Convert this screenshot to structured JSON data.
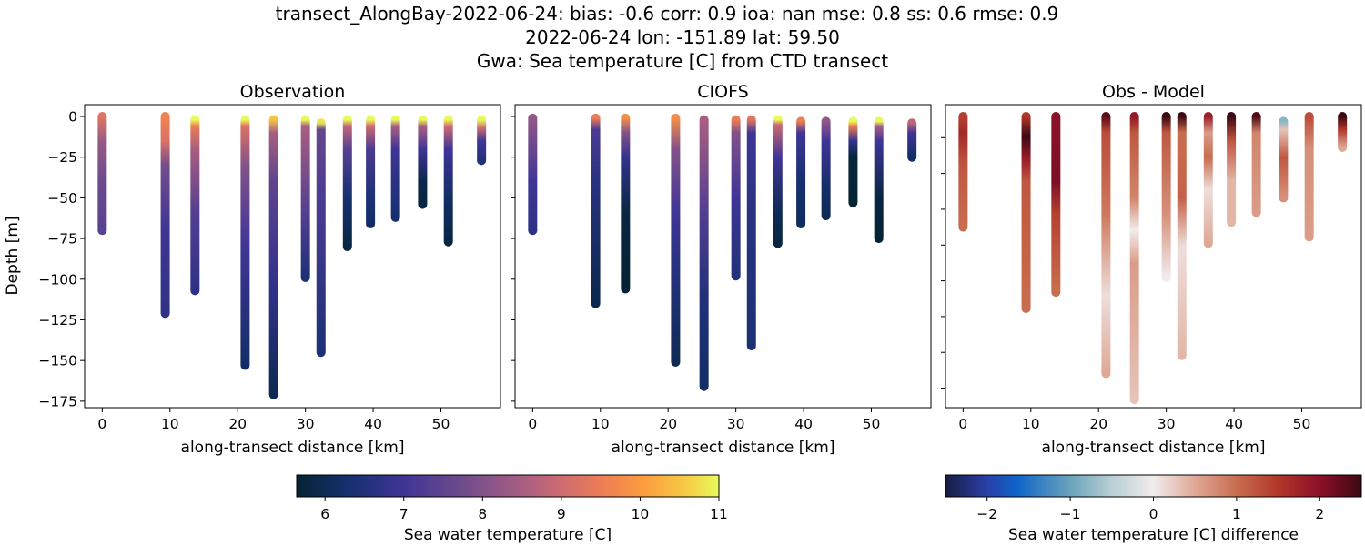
{
  "chart_data": {
    "type": "scatter",
    "title_lines": [
      "transect_AlongBay-2022-06-24: bias: -0.6  corr: 0.9  ioa: nan  mse: 0.8  ss: 0.6  rmse: 0.9",
      "2022-06-24 lon: -151.89 lat: 59.50",
      "Gwa: Sea temperature [C] from CTD transect"
    ],
    "ylabel": "Depth [m]",
    "xlim": [
      -2.6,
      58.8
    ],
    "ylim": [
      -179,
      7.3
    ],
    "xticks": [
      0,
      10,
      20,
      30,
      40,
      50
    ],
    "yticks": [
      0,
      -25,
      -50,
      -75,
      -100,
      -125,
      -150,
      -175
    ],
    "grid": false,
    "panels": [
      {
        "title": "Observation",
        "xlabel": "along-transect distance [km]",
        "colormap": "thermal",
        "casts": [
          {
            "x": 0,
            "profile": [
              [
                0,
                9.3
              ],
              [
                -15,
                8.3
              ],
              [
                -40,
                7.7
              ],
              [
                -70,
                7.4
              ]
            ]
          },
          {
            "x": 9.3,
            "profile": [
              [
                0,
                9.6
              ],
              [
                -15,
                9.2
              ],
              [
                -30,
                7.8
              ],
              [
                -70,
                7.0
              ],
              [
                -121,
                6.7
              ]
            ]
          },
          {
            "x": 13.7,
            "profile": [
              [
                -2,
                11
              ],
              [
                -6,
                9.5
              ],
              [
                -20,
                8.5
              ],
              [
                -60,
                7.3
              ],
              [
                -107,
                6.7
              ]
            ]
          },
          {
            "x": 21.1,
            "profile": [
              [
                -2,
                11
              ],
              [
                -6,
                9.2
              ],
              [
                -30,
                8.0
              ],
              [
                -80,
                7.0
              ],
              [
                -153,
                6.2
              ]
            ]
          },
          {
            "x": 25.3,
            "profile": [
              [
                -2,
                10.5
              ],
              [
                -10,
                8.5
              ],
              [
                -40,
                7.5
              ],
              [
                -100,
                6.8
              ],
              [
                -171,
                6.0
              ]
            ]
          },
          {
            "x": 30.0,
            "profile": [
              [
                -2,
                11
              ],
              [
                -6,
                8.5
              ],
              [
                -60,
                7.3
              ],
              [
                -99,
                6.4
              ]
            ]
          },
          {
            "x": 32.3,
            "profile": [
              [
                -4,
                10.8
              ],
              [
                -8,
                7.6
              ],
              [
                -50,
                7.2
              ],
              [
                -145,
                6.4
              ]
            ]
          },
          {
            "x": 36.2,
            "profile": [
              [
                -2,
                11
              ],
              [
                -6,
                8.8
              ],
              [
                -20,
                7.4
              ],
              [
                -50,
                6.3
              ],
              [
                -80,
                5.8
              ]
            ]
          },
          {
            "x": 39.6,
            "profile": [
              [
                -2,
                11
              ],
              [
                -6,
                9.0
              ],
              [
                -20,
                7.2
              ],
              [
                -50,
                6.4
              ],
              [
                -66,
                6.2
              ]
            ]
          },
          {
            "x": 43.3,
            "profile": [
              [
                -2,
                11
              ],
              [
                -6,
                8.5
              ],
              [
                -20,
                7.0
              ],
              [
                -62,
                6.3
              ]
            ]
          },
          {
            "x": 47.3,
            "profile": [
              [
                -2,
                11
              ],
              [
                -6,
                8.5
              ],
              [
                -20,
                7.0
              ],
              [
                -40,
                5.9
              ],
              [
                -54,
                5.8
              ]
            ]
          },
          {
            "x": 51.1,
            "profile": [
              [
                -2,
                11
              ],
              [
                -6,
                9.0
              ],
              [
                -20,
                7.0
              ],
              [
                -50,
                6.2
              ],
              [
                -77,
                5.8
              ]
            ]
          },
          {
            "x": 56.0,
            "profile": [
              [
                -2,
                11
              ],
              [
                -7,
                9.0
              ],
              [
                -15,
                7.0
              ],
              [
                -27,
                6.5
              ]
            ]
          }
        ]
      },
      {
        "title": "CIOFS",
        "xlabel": "along-transect distance [km]",
        "colormap": "thermal",
        "casts": [
          {
            "x": 0,
            "profile": [
              [
                -1,
                8.2
              ],
              [
                -40,
                7.0
              ],
              [
                -70,
                6.7
              ]
            ]
          },
          {
            "x": 9.3,
            "profile": [
              [
                -1,
                9.5
              ],
              [
                -8,
                7.2
              ],
              [
                -40,
                6.6
              ],
              [
                -115,
                5.9
              ]
            ]
          },
          {
            "x": 13.7,
            "profile": [
              [
                -1,
                9.8
              ],
              [
                -10,
                8.0
              ],
              [
                -25,
                6.8
              ],
              [
                -60,
                5.8
              ],
              [
                -106,
                5.6
              ]
            ]
          },
          {
            "x": 21.1,
            "profile": [
              [
                -1,
                9.8
              ],
              [
                -20,
                8.0
              ],
              [
                -60,
                7.0
              ],
              [
                -100,
                6.5
              ],
              [
                -151,
                6.0
              ]
            ]
          },
          {
            "x": 25.3,
            "profile": [
              [
                -2,
                8.5
              ],
              [
                -60,
                7.3
              ],
              [
                -110,
                6.5
              ],
              [
                -166,
                6.2
              ]
            ]
          },
          {
            "x": 30.0,
            "profile": [
              [
                -2,
                9.5
              ],
              [
                -10,
                8.0
              ],
              [
                -50,
                7.0
              ],
              [
                -98,
                6.5
              ]
            ]
          },
          {
            "x": 32.3,
            "profile": [
              [
                -2,
                9.3
              ],
              [
                -10,
                7.0
              ],
              [
                -60,
                6.6
              ],
              [
                -141,
                6.4
              ]
            ]
          },
          {
            "x": 36.2,
            "profile": [
              [
                -2,
                11
              ],
              [
                -5,
                9.0
              ],
              [
                -25,
                7.0
              ],
              [
                -60,
                6.0
              ],
              [
                -78,
                5.8
              ]
            ]
          },
          {
            "x": 39.6,
            "profile": [
              [
                -3,
                9.5
              ],
              [
                -10,
                7.0
              ],
              [
                -40,
                6.3
              ],
              [
                -66,
                6.1
              ]
            ]
          },
          {
            "x": 43.3,
            "profile": [
              [
                -3,
                8.2
              ],
              [
                -15,
                7.0
              ],
              [
                -45,
                6.2
              ],
              [
                -61,
                6.0
              ]
            ]
          },
          {
            "x": 47.3,
            "profile": [
              [
                -3,
                11
              ],
              [
                -6,
                9.5
              ],
              [
                -15,
                6.8
              ],
              [
                -25,
                5.7
              ],
              [
                -53,
                5.6
              ]
            ]
          },
          {
            "x": 51.1,
            "profile": [
              [
                -3,
                11
              ],
              [
                -6,
                8.5
              ],
              [
                -15,
                7.0
              ],
              [
                -50,
                5.8
              ],
              [
                -75,
                5.6
              ]
            ]
          },
          {
            "x": 56.0,
            "profile": [
              [
                -4,
                8.8
              ],
              [
                -10,
                7.0
              ],
              [
                -25,
                6.2
              ]
            ]
          }
        ]
      },
      {
        "title": "Obs - Model",
        "xlabel": "along-transect distance [km]",
        "colormap": "balance",
        "casts": [
          {
            "x": 0,
            "profile": [
              [
                0,
                1.4
              ],
              [
                -10,
                1.7
              ],
              [
                -30,
                1.2
              ],
              [
                -68,
                1.0
              ]
            ]
          },
          {
            "x": 9.3,
            "profile": [
              [
                0,
                1.5
              ],
              [
                -12,
                2.5
              ],
              [
                -25,
                1.9
              ],
              [
                -40,
                1.2
              ],
              [
                -118,
                1.0
              ]
            ]
          },
          {
            "x": 13.7,
            "profile": [
              [
                0,
                2.0
              ],
              [
                -40,
                2.1
              ],
              [
                -60,
                1.4
              ],
              [
                -108,
                1.0
              ]
            ]
          },
          {
            "x": 21.1,
            "profile": [
              [
                0,
                2.3
              ],
              [
                -10,
                1.3
              ],
              [
                -60,
                0.9
              ],
              [
                -110,
                0.1
              ],
              [
                -158,
                0.5
              ]
            ]
          },
          {
            "x": 25.3,
            "profile": [
              [
                0,
                1.9
              ],
              [
                -10,
                1.2
              ],
              [
                -50,
                0.8
              ],
              [
                -70,
                0.0
              ],
              [
                -90,
                0.6
              ],
              [
                -174,
                0.3
              ]
            ]
          },
          {
            "x": 30.0,
            "profile": [
              [
                0,
                2.5
              ],
              [
                -10,
                1.2
              ],
              [
                -60,
                0.7
              ],
              [
                -99,
                0.0
              ]
            ]
          },
          {
            "x": 32.3,
            "profile": [
              [
                0,
                2.5
              ],
              [
                -10,
                1.0
              ],
              [
                -50,
                1.1
              ],
              [
                -80,
                0.1
              ],
              [
                -147,
                0.4
              ]
            ]
          },
          {
            "x": 36.2,
            "profile": [
              [
                0,
                1.8
              ],
              [
                -10,
                0.6
              ],
              [
                -25,
                1.0
              ],
              [
                -45,
                0.1
              ],
              [
                -78,
                0.5
              ]
            ]
          },
          {
            "x": 39.6,
            "profile": [
              [
                0,
                2.5
              ],
              [
                -15,
                1.2
              ],
              [
                -40,
                0.4
              ],
              [
                -65,
                0.4
              ]
            ]
          },
          {
            "x": 43.3,
            "profile": [
              [
                0,
                2.4
              ],
              [
                -10,
                0.8
              ],
              [
                -59,
                0.6
              ]
            ]
          },
          {
            "x": 47.3,
            "profile": [
              [
                -3,
                -0.8
              ],
              [
                -8,
                0.3
              ],
              [
                -25,
                1.2
              ],
              [
                -50,
                0.7
              ]
            ]
          },
          {
            "x": 51.1,
            "profile": [
              [
                0,
                1.3
              ],
              [
                -20,
                0.7
              ],
              [
                -74,
                0.6
              ]
            ]
          },
          {
            "x": 56.0,
            "profile": [
              [
                0,
                2.6
              ],
              [
                -8,
                1.5
              ],
              [
                -19,
                0.5
              ]
            ]
          }
        ]
      }
    ],
    "colorbars": [
      {
        "label": "Sea water temperature [C]",
        "range": [
          5.64,
          11
        ],
        "ticks": [
          6,
          7,
          8,
          9,
          10,
          11
        ],
        "colormap": "thermal"
      },
      {
        "label": "Sea water temperature [C] difference",
        "range": [
          -2.5,
          2.5
        ],
        "ticks": [
          -2,
          -1,
          0,
          1,
          2
        ],
        "colormap": "balance"
      }
    ]
  }
}
